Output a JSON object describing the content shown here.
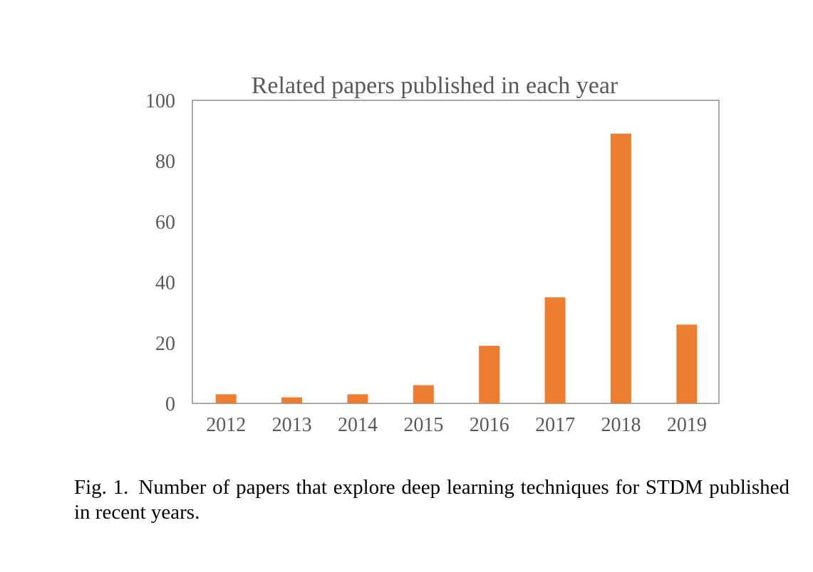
{
  "chart_data": {
    "type": "bar",
    "title": "Related papers published in each year",
    "xlabel": "",
    "ylabel": "",
    "categories": [
      "2012",
      "2013",
      "2014",
      "2015",
      "2016",
      "2017",
      "2018",
      "2019"
    ],
    "values": [
      3,
      2,
      3,
      6,
      19,
      35,
      89,
      26
    ],
    "ylim": [
      0,
      100
    ],
    "yticks": [
      "0",
      "20",
      "40",
      "60",
      "80",
      "100"
    ],
    "grid": false,
    "legend": "none",
    "bar_color": "#ED7D31",
    "axis_color": "#8C8C8C",
    "text_color": "#595959"
  },
  "caption": {
    "label": "Fig. 1.",
    "text": "Number of papers that explore deep learning techniques for STDM published in recent years."
  }
}
